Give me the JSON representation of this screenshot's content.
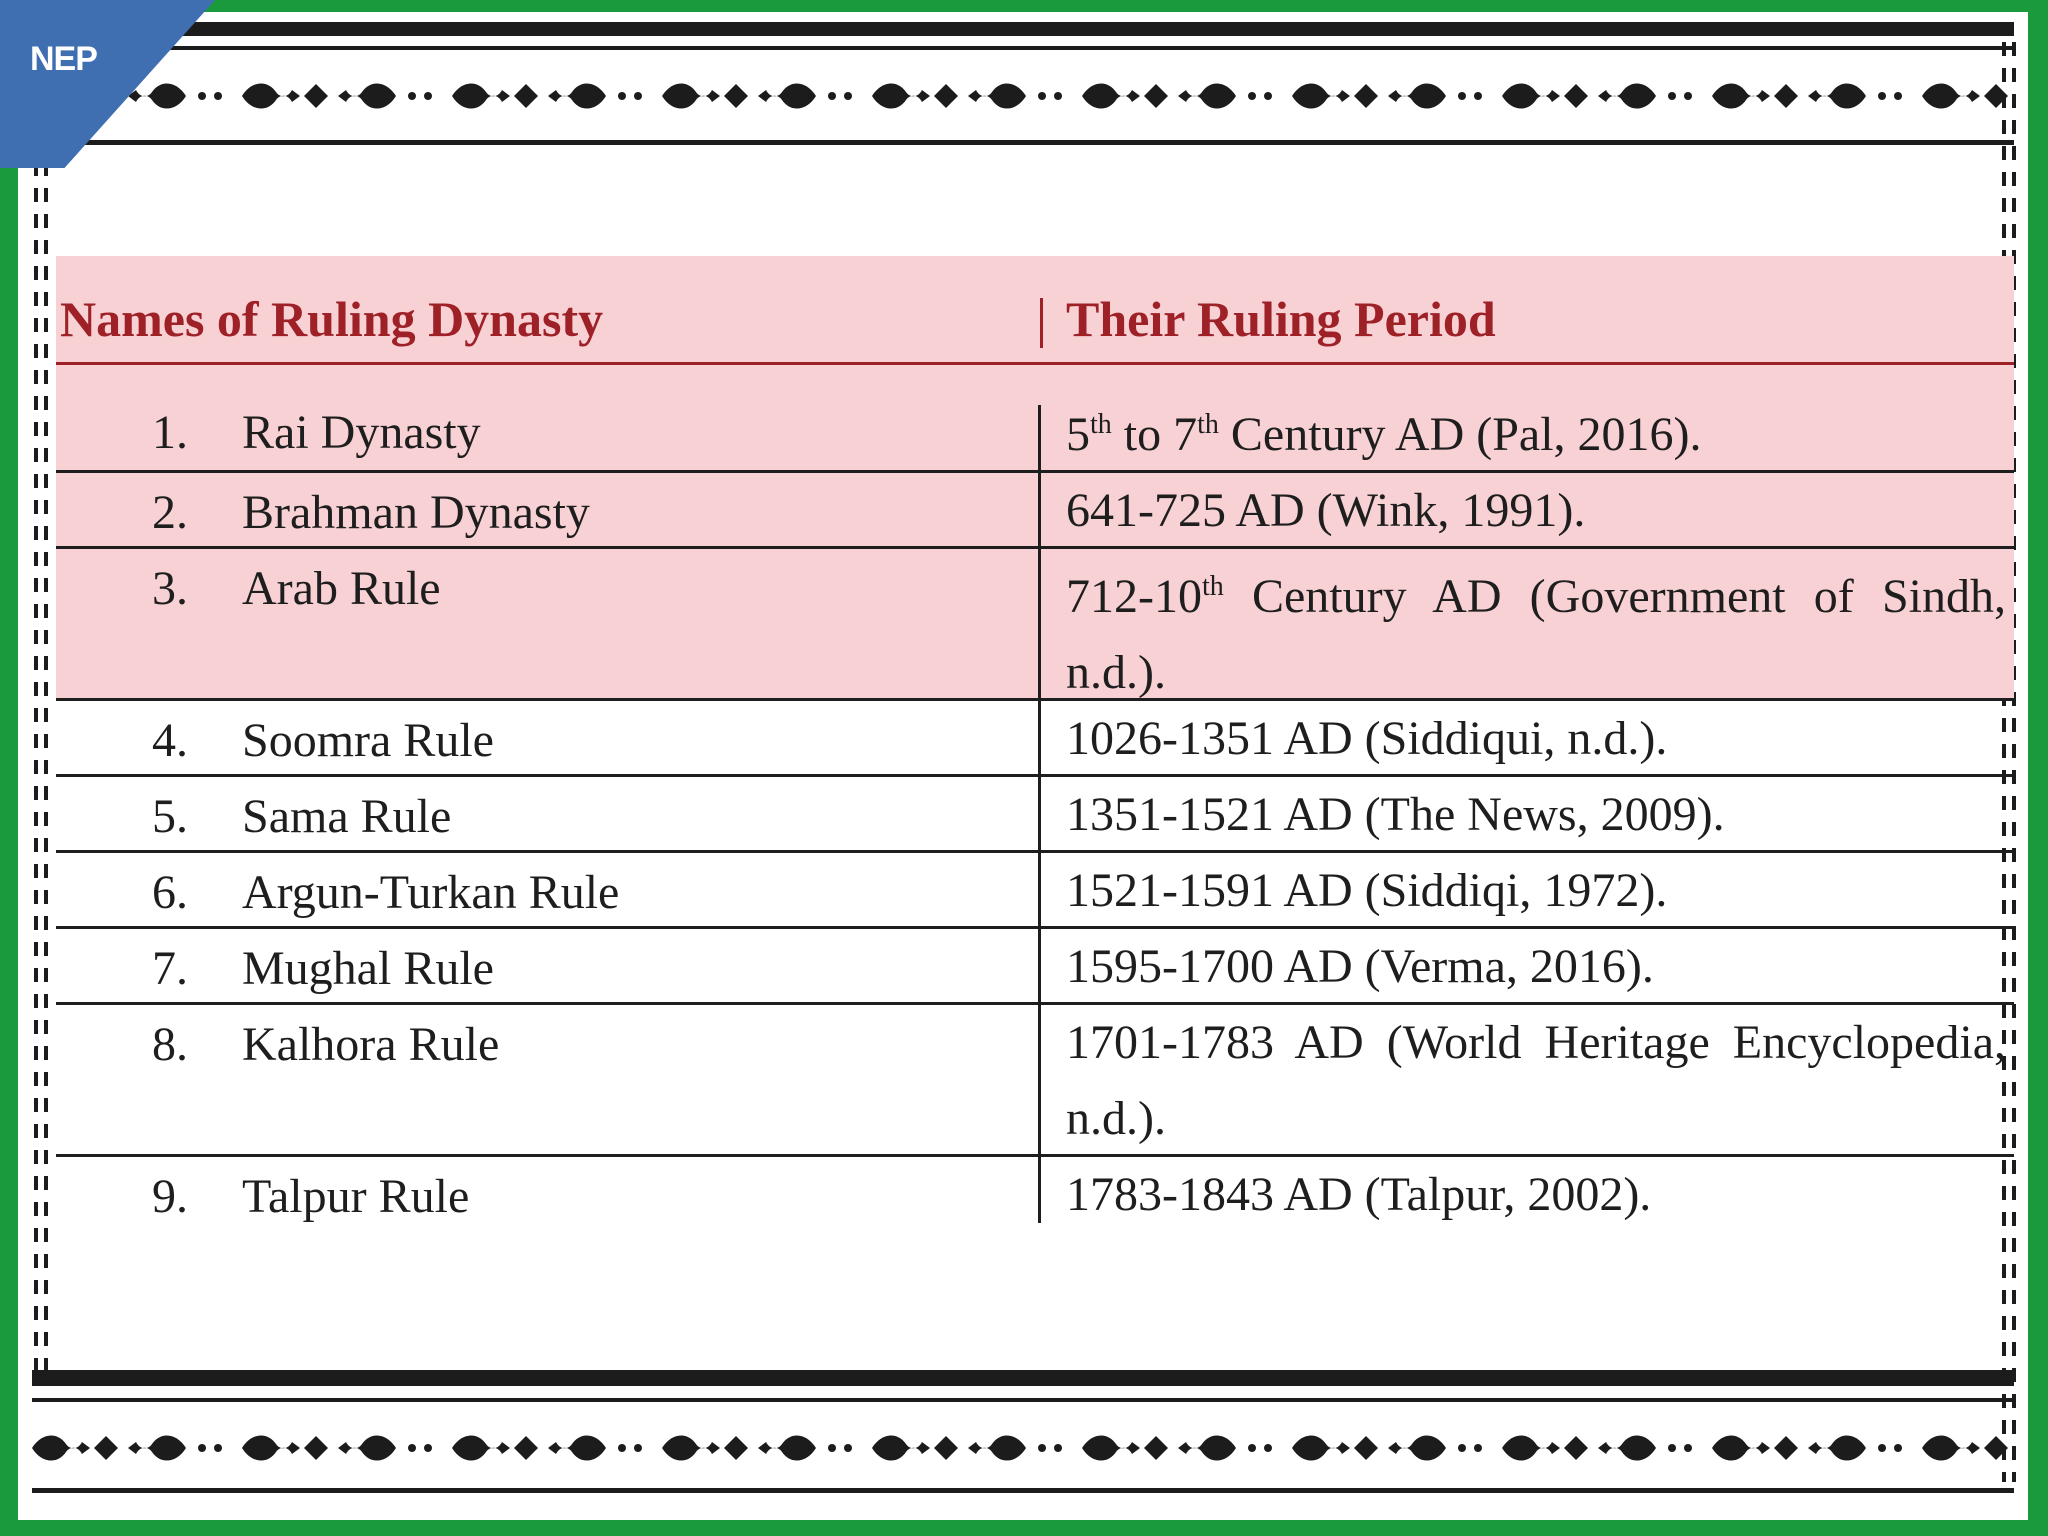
{
  "badge": {
    "label": "NEP"
  },
  "table": {
    "headers": [
      "Names of Ruling Dynasty",
      "Their Ruling Period"
    ],
    "rows": [
      {
        "num": "1.",
        "name": "Rai Dynasty",
        "period": "5th to 7th Century AD (Pal, 2016).",
        "period_parts": [
          "5",
          "th",
          " to 7",
          "th",
          " Century AD (Pal, 2016)."
        ],
        "highlight": true
      },
      {
        "num": "2.",
        "name": "Brahman Dynasty",
        "period": "641-725 AD (Wink, 1991).",
        "highlight": true
      },
      {
        "num": "3.",
        "name": "Arab Rule",
        "period": "712-10th Century AD (Government of Sindh, n.d.).",
        "period_parts": [
          "712-10",
          "th",
          " Century AD (Government of Sindh, n.d.)."
        ],
        "highlight": true
      },
      {
        "num": "4.",
        "name": "Soomra Rule",
        "period": "1026-1351 AD (Siddiqui, n.d.).",
        "highlight": false
      },
      {
        "num": "5.",
        "name": "Sama Rule",
        "period": "1351-1521 AD (The News, 2009).",
        "highlight": false
      },
      {
        "num": "6.",
        "name": "Argun-Turkan Rule",
        "period": "1521-1591 AD (Siddiqi, 1972).",
        "highlight": false
      },
      {
        "num": "7.",
        "name": "Mughal Rule",
        "period": "1595-1700 AD (Verma, 2016).",
        "highlight": false
      },
      {
        "num": "8.",
        "name": "Kalhora Rule",
        "period": "1701-1783 AD (World Heritage Encyclopedia, n.d.).",
        "highlight": false
      },
      {
        "num": "9.",
        "name": "Talpur Rule",
        "period": "1783-1843 AD (Talpur, 2002).",
        "highlight": false
      }
    ]
  },
  "colors": {
    "frame": "#1a9a3c",
    "header_text": "#9e2128",
    "highlight_row": "#f8d1d4",
    "badge": "#3f6fb0"
  }
}
